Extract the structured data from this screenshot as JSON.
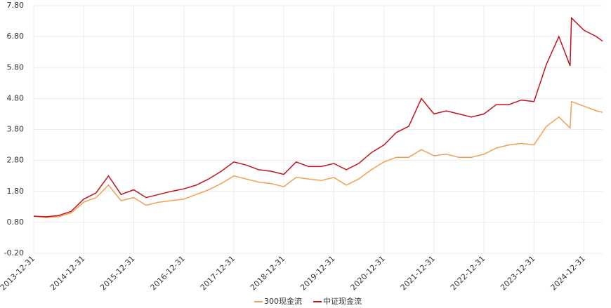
{
  "chart_data": {
    "type": "line",
    "x": [
      "2013-12-31",
      "2014-03-31",
      "2014-06-30",
      "2014-09-30",
      "2014-12-31",
      "2015-03-31",
      "2015-06-30",
      "2015-09-30",
      "2015-12-31",
      "2016-03-31",
      "2016-06-30",
      "2016-09-30",
      "2016-12-31",
      "2017-03-31",
      "2017-06-30",
      "2017-09-30",
      "2017-12-31",
      "2018-03-31",
      "2018-06-30",
      "2018-09-30",
      "2018-12-31",
      "2019-03-31",
      "2019-06-30",
      "2019-09-30",
      "2019-12-31",
      "2020-03-31",
      "2020-06-30",
      "2020-09-30",
      "2020-12-31",
      "2021-03-31",
      "2021-06-30",
      "2021-09-30",
      "2021-12-31",
      "2022-03-31",
      "2022-06-30",
      "2022-09-30",
      "2022-12-31",
      "2023-03-31",
      "2023-06-30",
      "2023-09-30",
      "2023-12-31",
      "2024-03-31",
      "2024-06-30",
      "2024-09-20",
      "2024-09-30",
      "2024-12-31",
      "2025-03-31",
      "2025-05-15"
    ],
    "series": [
      {
        "name": "300现金流",
        "color": "#f0a050",
        "values": [
          1.0,
          0.95,
          0.98,
          1.1,
          1.45,
          1.6,
          2.0,
          1.5,
          1.6,
          1.35,
          1.45,
          1.5,
          1.55,
          1.7,
          1.85,
          2.05,
          2.3,
          2.2,
          2.1,
          2.05,
          1.95,
          2.25,
          2.2,
          2.15,
          2.25,
          2.0,
          2.2,
          2.5,
          2.75,
          2.9,
          2.9,
          3.15,
          2.95,
          3.0,
          2.9,
          2.9,
          3.0,
          3.2,
          3.3,
          3.35,
          3.3,
          3.9,
          4.2,
          3.85,
          4.7,
          4.55,
          4.4,
          4.35
        ]
      },
      {
        "name": "中证现金流",
        "color": "#c0141e",
        "values": [
          1.0,
          0.98,
          1.02,
          1.15,
          1.55,
          1.75,
          2.3,
          1.7,
          1.85,
          1.6,
          1.7,
          1.8,
          1.88,
          2.0,
          2.2,
          2.45,
          2.75,
          2.65,
          2.5,
          2.45,
          2.35,
          2.75,
          2.6,
          2.6,
          2.7,
          2.5,
          2.7,
          3.05,
          3.3,
          3.7,
          3.9,
          4.8,
          4.3,
          4.4,
          4.3,
          4.2,
          4.3,
          4.6,
          4.6,
          4.75,
          4.7,
          5.9,
          6.8,
          5.85,
          7.4,
          7.0,
          6.8,
          6.65
        ]
      }
    ],
    "xlim": [
      "2013-12-31",
      "2025-05-15"
    ],
    "xticks": [
      "2013-12-31",
      "2014-12-31",
      "2015-12-31",
      "2016-12-31",
      "2017-12-31",
      "2018-12-31",
      "2019-12-31",
      "2020-12-31",
      "2021-12-31",
      "2022-12-31",
      "2023-12-31",
      "2024-12-31"
    ],
    "ylim": [
      -0.2,
      7.8
    ],
    "yticks": [
      {
        "value": -0.2,
        "label": "-0.20"
      },
      {
        "value": 0.8,
        "label": "0.80"
      },
      {
        "value": 1.8,
        "label": "1.80"
      },
      {
        "value": 2.8,
        "label": "2.80"
      },
      {
        "value": 3.8,
        "label": "3.80"
      },
      {
        "value": 4.8,
        "label": "4.80"
      },
      {
        "value": 5.8,
        "label": "5.80"
      },
      {
        "value": 6.8,
        "label": "6.80"
      },
      {
        "value": 7.8,
        "label": "7.80"
      }
    ],
    "grid": true,
    "legend": "bottom"
  }
}
